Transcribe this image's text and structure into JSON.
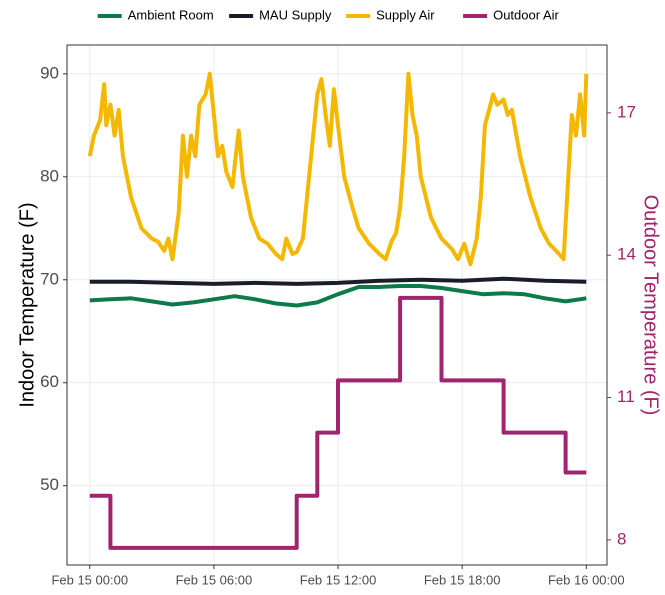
{
  "chart_data": {
    "type": "line",
    "y_label": "Indoor Temperature (F)",
    "y2_label": "Outdoor Temperature (F)",
    "y2_color": "#a0246e",
    "grid": true,
    "legend": "top",
    "xlim": [
      -1.1,
      25
    ],
    "xticks": [
      {
        "value": 0,
        "label": "Feb 15 00:00"
      },
      {
        "value": 6,
        "label": "Feb 15 06:00"
      },
      {
        "value": 12,
        "label": "Feb 15 12:00"
      },
      {
        "value": 18,
        "label": "Feb 15 18:00"
      },
      {
        "value": 24,
        "label": "Feb 16 00:00"
      }
    ],
    "ylim": [
      42.3,
      92.8
    ],
    "yticks": [
      50,
      60,
      70,
      80,
      90
    ],
    "y2lim": [
      7.47,
      18.43
    ],
    "y2ticks": [
      8,
      11,
      14,
      17
    ],
    "series": [
      {
        "name": "Ambient Room",
        "color": "#0d7a4a",
        "x": [
          0,
          1,
          2,
          3,
          4,
          5,
          6,
          7,
          8,
          9,
          10,
          11,
          12,
          13,
          14,
          15,
          16,
          17,
          18,
          19,
          20,
          21,
          22,
          23,
          24
        ],
        "values": [
          68.0,
          68.1,
          68.2,
          67.9,
          67.6,
          67.8,
          68.1,
          68.4,
          68.1,
          67.7,
          67.5,
          67.8,
          68.6,
          69.3,
          69.3,
          69.4,
          69.4,
          69.2,
          68.9,
          68.6,
          68.7,
          68.6,
          68.2,
          67.9,
          68.2
        ]
      },
      {
        "name": "MAU Supply",
        "color": "#1a1e2b",
        "x": [
          0,
          2,
          4,
          6,
          8,
          10,
          12,
          14,
          16,
          18,
          20,
          22,
          24
        ],
        "values": [
          69.8,
          69.8,
          69.7,
          69.6,
          69.7,
          69.6,
          69.7,
          69.9,
          70.0,
          69.9,
          70.1,
          69.9,
          69.8
        ]
      },
      {
        "name": "Supply Air",
        "color": "#f5b800",
        "x": [
          0,
          0.2,
          0.5,
          0.7,
          0.8,
          1.0,
          1.2,
          1.4,
          1.6,
          2.0,
          2.5,
          3.0,
          3.3,
          3.6,
          3.8,
          4.0,
          4.3,
          4.5,
          4.7,
          4.9,
          5.1,
          5.3,
          5.6,
          5.8,
          6.0,
          6.2,
          6.4,
          6.6,
          6.9,
          7.0,
          7.2,
          7.4,
          7.8,
          8.2,
          8.6,
          9.0,
          9.3,
          9.5,
          9.8,
          10.0,
          10.3,
          10.5,
          10.8,
          11.0,
          11.2,
          11.4,
          11.6,
          11.8,
          12.0,
          12.3,
          12.7,
          13.0,
          13.5,
          14.0,
          14.3,
          14.6,
          14.8,
          15.0,
          15.2,
          15.4,
          15.6,
          15.8,
          16.0,
          16.5,
          17.0,
          17.5,
          17.8,
          18.1,
          18.4,
          18.7,
          18.9,
          19.1,
          19.3,
          19.5,
          19.7,
          20.0,
          20.2,
          20.4,
          20.8,
          21.3,
          21.8,
          22.2,
          22.6,
          22.9,
          23.1,
          23.3,
          23.5,
          23.7,
          23.9,
          24.0
        ],
        "values": [
          82,
          84,
          85.5,
          89,
          85,
          87,
          84,
          86.5,
          82,
          78,
          75,
          74,
          73.7,
          72.8,
          74,
          72,
          76.5,
          84,
          80,
          84,
          82,
          87,
          88,
          90,
          86,
          82,
          83,
          80.5,
          79,
          81,
          84.5,
          80,
          76,
          74,
          73.5,
          72.5,
          72,
          74,
          72.5,
          72.7,
          74,
          78,
          84,
          88,
          89.5,
          86,
          83,
          88.5,
          85,
          80,
          77,
          75,
          73.5,
          72.5,
          72,
          73.8,
          74.5,
          77,
          82,
          90,
          86,
          84,
          80,
          76,
          74,
          73,
          72,
          73.5,
          71.5,
          74,
          78,
          85,
          86.5,
          88,
          87,
          87.5,
          86,
          86.5,
          82,
          78,
          75,
          73.5,
          72.7,
          72,
          79,
          86,
          84,
          88,
          84,
          90
        ]
      },
      {
        "name": "Outdoor Air",
        "color": "#a0246e",
        "axis": "y2",
        "x": [
          0,
          1,
          1,
          10,
          10,
          11,
          11,
          12,
          12,
          15,
          15,
          17,
          17,
          20,
          20,
          23,
          23,
          24
        ],
        "values": [
          8.93,
          8.93,
          7.83,
          7.83,
          8.93,
          8.93,
          10.26,
          10.26,
          11.36,
          11.36,
          13.1,
          13.1,
          11.36,
          11.36,
          10.26,
          10.26,
          9.42,
          9.42
        ]
      }
    ]
  }
}
